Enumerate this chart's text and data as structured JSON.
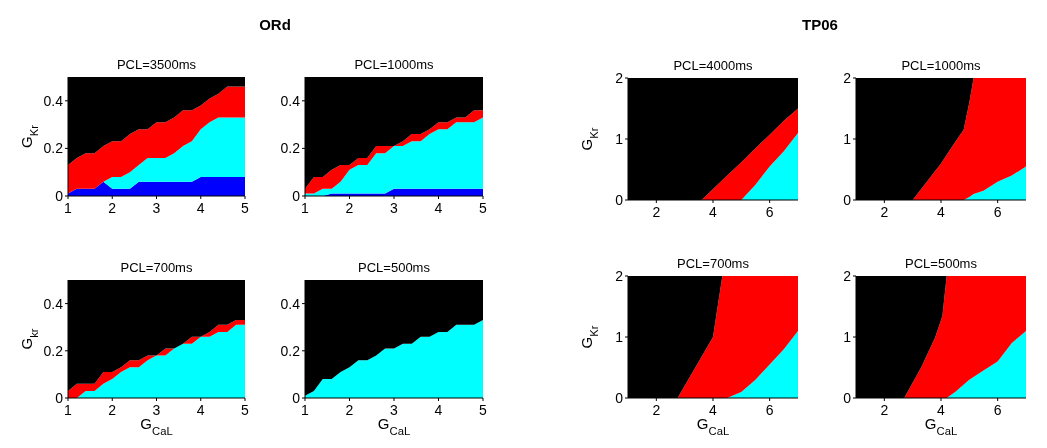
{
  "chart_data": [
    {
      "type": "other",
      "title": "ORd"
    },
    {
      "type": "area",
      "stacked": true,
      "title": "PCL=3500ms",
      "ylabel": "G$_{Kr}$",
      "xlim": [
        1,
        5
      ],
      "xticks": [
        1,
        2,
        3,
        4,
        5
      ],
      "ylim": [
        0,
        0.5
      ],
      "yticks": [
        0,
        0.2,
        0.4
      ],
      "x": [
        1,
        1.2,
        1.4,
        1.6,
        1.8,
        2,
        2.2,
        2.4,
        2.6,
        2.8,
        3,
        3.2,
        3.4,
        3.6,
        3.8,
        4,
        4.2,
        4.4,
        4.6,
        4.8,
        5
      ],
      "series": [
        {
          "color": "#0000ff",
          "values": [
            0.01,
            0.03,
            0.03,
            0.03,
            0.06,
            0.03,
            0.03,
            0.03,
            0.06,
            0.06,
            0.06,
            0.06,
            0.06,
            0.06,
            0.06,
            0.08,
            0.08,
            0.08,
            0.08,
            0.08,
            0.08
          ]
        },
        {
          "color": "#00ffff",
          "values": [
            0,
            0,
            0,
            0,
            0,
            0.05,
            0.05,
            0.07,
            0.07,
            0.1,
            0.1,
            0.1,
            0.12,
            0.15,
            0.17,
            0.2,
            0.23,
            0.25,
            0.25,
            0.25,
            0.25
          ]
        },
        {
          "color": "#ff0000",
          "values": [
            0.12,
            0.13,
            0.15,
            0.15,
            0.15,
            0.15,
            0.15,
            0.16,
            0.15,
            0.12,
            0.15,
            0.15,
            0.15,
            0.15,
            0.13,
            0.1,
            0.1,
            0.1,
            0.13,
            0.13,
            0.13
          ]
        },
        {
          "color": "#000000",
          "values": [
            0.37,
            0.34,
            0.32,
            0.32,
            0.29,
            0.27,
            0.27,
            0.24,
            0.22,
            0.22,
            0.19,
            0.19,
            0.17,
            0.14,
            0.14,
            0.12,
            0.09,
            0.07,
            0.04,
            0.04,
            0.04
          ]
        }
      ]
    },
    {
      "type": "area",
      "stacked": true,
      "title": "PCL=1000ms",
      "xlim": [
        1,
        5
      ],
      "xticks": [
        1,
        2,
        3,
        4,
        5
      ],
      "ylim": [
        0,
        0.5
      ],
      "yticks": [
        0,
        0.2,
        0.4
      ],
      "x": [
        1,
        1.2,
        1.4,
        1.6,
        1.8,
        2,
        2.2,
        2.4,
        2.6,
        2.8,
        3,
        3.2,
        3.4,
        3.6,
        3.8,
        4,
        4.2,
        4.4,
        4.6,
        4.8,
        5
      ],
      "series": [
        {
          "color": "#0000ff",
          "values": [
            0,
            0,
            0,
            0.01,
            0.01,
            0.01,
            0.01,
            0.01,
            0.01,
            0.01,
            0.03,
            0.03,
            0.03,
            0.03,
            0.03,
            0.03,
            0.03,
            0.03,
            0.03,
            0.03,
            0.03
          ]
        },
        {
          "color": "#00ffff",
          "values": [
            0.01,
            0.01,
            0.03,
            0.02,
            0.05,
            0.1,
            0.12,
            0.12,
            0.17,
            0.17,
            0.18,
            0.18,
            0.2,
            0.2,
            0.23,
            0.25,
            0.25,
            0.28,
            0.28,
            0.28,
            0.3
          ]
        },
        {
          "color": "#ff0000",
          "values": [
            0.02,
            0.07,
            0.05,
            0.08,
            0.07,
            0.02,
            0.03,
            0.03,
            0.03,
            0.03,
            0,
            0.02,
            0.03,
            0.03,
            0.02,
            0.03,
            0.03,
            0.02,
            0.02,
            0.05,
            0.03
          ]
        },
        {
          "color": "#000000",
          "values": [
            0.47,
            0.42,
            0.42,
            0.39,
            0.37,
            0.37,
            0.34,
            0.34,
            0.29,
            0.29,
            0.29,
            0.27,
            0.24,
            0.24,
            0.22,
            0.19,
            0.19,
            0.17,
            0.17,
            0.14,
            0.14
          ]
        }
      ]
    },
    {
      "type": "area",
      "stacked": true,
      "title": "PCL=700ms",
      "xlabel": "G$_{CaL}$",
      "ylabel": "G$_{kr}$",
      "xlim": [
        1,
        5
      ],
      "xticks": [
        1,
        2,
        3,
        4,
        5
      ],
      "ylim": [
        0,
        0.5
      ],
      "yticks": [
        0,
        0.2,
        0.4
      ],
      "x": [
        1,
        1.2,
        1.4,
        1.6,
        1.8,
        2,
        2.2,
        2.4,
        2.6,
        2.8,
        3,
        3.2,
        3.4,
        3.6,
        3.8,
        4,
        4.2,
        4.4,
        4.6,
        4.8,
        5
      ],
      "series": [
        {
          "color": "#00ffff",
          "values": [
            0,
            0,
            0.03,
            0.03,
            0.06,
            0.08,
            0.11,
            0.13,
            0.13,
            0.16,
            0.18,
            0.18,
            0.21,
            0.23,
            0.23,
            0.26,
            0.26,
            0.28,
            0.28,
            0.31,
            0.31
          ]
        },
        {
          "color": "#ff0000",
          "values": [
            0.03,
            0.06,
            0.03,
            0.03,
            0.05,
            0.03,
            0.02,
            0.03,
            0.03,
            0.02,
            0,
            0.03,
            0,
            0,
            0.03,
            0,
            0.02,
            0.03,
            0.03,
            0.02,
            0.02
          ]
        },
        {
          "color": "#000000",
          "values": [
            0.47,
            0.44,
            0.44,
            0.44,
            0.39,
            0.39,
            0.37,
            0.34,
            0.34,
            0.32,
            0.32,
            0.29,
            0.29,
            0.27,
            0.24,
            0.24,
            0.22,
            0.19,
            0.19,
            0.17,
            0.17
          ]
        }
      ]
    },
    {
      "type": "area",
      "stacked": true,
      "title": "PCL=500ms",
      "xlabel": "G$_{CaL}$",
      "xlim": [
        1,
        5
      ],
      "xticks": [
        1,
        2,
        3,
        4,
        5
      ],
      "ylim": [
        0,
        0.5
      ],
      "yticks": [
        0,
        0.2,
        0.4
      ],
      "x": [
        1,
        1.2,
        1.4,
        1.6,
        1.8,
        2,
        2.2,
        2.4,
        2.6,
        2.8,
        3,
        3.2,
        3.4,
        3.6,
        3.8,
        4,
        4.2,
        4.4,
        4.6,
        4.8,
        5
      ],
      "series": [
        {
          "color": "#00ffff",
          "values": [
            0.01,
            0.03,
            0.08,
            0.08,
            0.11,
            0.13,
            0.16,
            0.16,
            0.18,
            0.21,
            0.21,
            0.23,
            0.23,
            0.26,
            0.26,
            0.28,
            0.28,
            0.31,
            0.31,
            0.31,
            0.33
          ]
        },
        {
          "color": "#000000",
          "values": [
            0.49,
            0.47,
            0.42,
            0.42,
            0.39,
            0.37,
            0.34,
            0.34,
            0.32,
            0.29,
            0.29,
            0.27,
            0.27,
            0.24,
            0.24,
            0.22,
            0.22,
            0.19,
            0.19,
            0.19,
            0.17
          ]
        }
      ]
    },
    {
      "type": "other",
      "title": "TP06"
    },
    {
      "type": "area",
      "stacked": true,
      "title": "PCL=4000ms",
      "ylabel": "G$_{Kr}$",
      "xlim": [
        1,
        7
      ],
      "xticks": [
        2,
        4,
        6
      ],
      "ylim": [
        0,
        2
      ],
      "yticks": [
        0,
        1,
        2
      ],
      "x": [
        1,
        2,
        3,
        3.6,
        4,
        4.5,
        5,
        5.5,
        6,
        6.5,
        7
      ],
      "series": [
        {
          "color": "#00ffff",
          "values": [
            0,
            0,
            0,
            0,
            0,
            0,
            0,
            0.25,
            0.55,
            0.8,
            1.1
          ]
        },
        {
          "color": "#ff0000",
          "values": [
            0,
            0,
            0,
            0,
            0.18,
            0.4,
            0.62,
            0.6,
            0.52,
            0.5,
            0.4
          ]
        },
        {
          "color": "#000000",
          "values": [
            2,
            2,
            2,
            2,
            1.82,
            1.6,
            1.38,
            1.15,
            0.93,
            0.7,
            0.5
          ]
        }
      ]
    },
    {
      "type": "area",
      "stacked": true,
      "title": "PCL=1000ms",
      "xlim": [
        1,
        7
      ],
      "xticks": [
        2,
        4,
        6
      ],
      "ylim": [
        0,
        2
      ],
      "yticks": [
        0,
        1,
        2
      ],
      "x": [
        1,
        2,
        3,
        3.5,
        4,
        4.5,
        4.8,
        5,
        5.15,
        5.5,
        6,
        6.5,
        7
      ],
      "series": [
        {
          "color": "#00ffff",
          "values": [
            0,
            0,
            0,
            0,
            0,
            0,
            0,
            0.05,
            0.1,
            0.15,
            0.3,
            0.4,
            0.55
          ]
        },
        {
          "color": "#ff0000",
          "values": [
            0,
            0,
            0,
            0.3,
            0.6,
            0.95,
            1.15,
            1.55,
            1.9,
            1.85,
            1.7,
            1.6,
            1.45
          ]
        },
        {
          "color": "#000000",
          "values": [
            2,
            2,
            2,
            1.7,
            1.4,
            1.05,
            0.85,
            0.4,
            0,
            null,
            null,
            null,
            null
          ]
        }
      ]
    },
    {
      "type": "area",
      "stacked": true,
      "title": "PCL=700ms",
      "xlabel": "G$_{CaL}$",
      "ylabel": "G$_{Kr}$",
      "xlim": [
        1,
        7
      ],
      "xticks": [
        2,
        4,
        6
      ],
      "ylim": [
        0,
        2
      ],
      "yticks": [
        0,
        1,
        2
      ],
      "x": [
        1,
        2,
        2.75,
        3,
        3.5,
        4,
        4.33,
        4.5,
        5,
        5.5,
        6,
        6.5,
        7
      ],
      "series": [
        {
          "color": "#00ffff",
          "values": [
            0,
            0,
            0,
            0,
            0,
            0,
            0,
            0,
            0.1,
            0.3,
            0.55,
            0.8,
            1.1
          ]
        },
        {
          "color": "#ff0000",
          "values": [
            0,
            0,
            0,
            0.2,
            0.6,
            1,
            2,
            2,
            1.9,
            1.7,
            1.45,
            1.2,
            0.9
          ]
        },
        {
          "color": "#000000",
          "values": [
            2,
            2,
            2,
            1.8,
            1.4,
            1,
            0,
            null,
            null,
            null,
            null,
            null,
            null
          ]
        }
      ]
    },
    {
      "type": "area",
      "stacked": true,
      "title": "PCL=500ms",
      "xlabel": "G$_{CaL}$",
      "xlim": [
        1,
        7
      ],
      "xticks": [
        2,
        4,
        6
      ],
      "ylim": [
        0,
        2
      ],
      "yticks": [
        0,
        1,
        2
      ],
      "x": [
        1,
        2,
        2.7,
        3.3,
        3.8,
        4.05,
        4.2,
        4.5,
        5,
        5.5,
        6,
        6.5,
        7
      ],
      "series": [
        {
          "color": "#00ffff",
          "values": [
            0,
            0,
            0,
            0,
            0,
            0,
            0,
            0.1,
            0.3,
            0.45,
            0.6,
            0.9,
            1.1
          ]
        },
        {
          "color": "#ff0000",
          "values": [
            0,
            0,
            0,
            0.5,
            1,
            1.35,
            2,
            1.9,
            1.7,
            1.55,
            1.4,
            1.1,
            0.9
          ]
        },
        {
          "color": "#000000",
          "values": [
            2,
            2,
            2,
            1.5,
            1,
            0.65,
            0,
            null,
            null,
            null,
            null,
            null,
            null
          ]
        }
      ]
    }
  ]
}
